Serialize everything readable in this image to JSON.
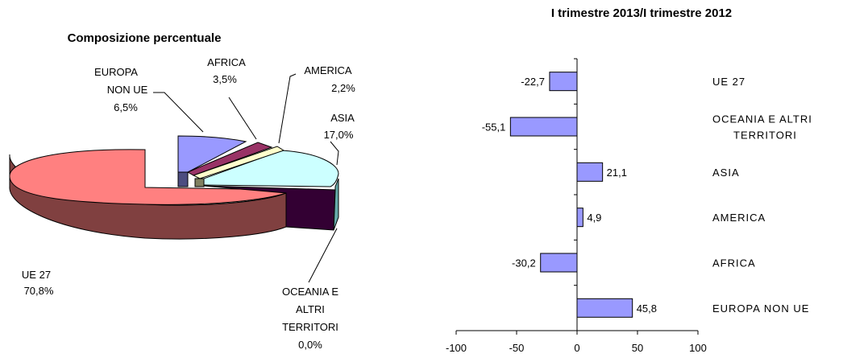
{
  "chart_data": [
    {
      "type": "pie",
      "title": "Composizione percentuale",
      "style": "3d-exploded",
      "slices": [
        {
          "name_lines": [
            "UE 27"
          ],
          "value_label": "70,8%",
          "value": 70.8,
          "color": "#ff8080"
        },
        {
          "name_lines": [
            "EUROPA",
            "NON UE"
          ],
          "value_label": "6,5%",
          "value": 6.5,
          "color": "#9999ff"
        },
        {
          "name_lines": [
            "AFRICA"
          ],
          "value_label": "3,5%",
          "value": 3.5,
          "color": "#993366"
        },
        {
          "name_lines": [
            "AMERICA"
          ],
          "value_label": "2,2%",
          "value": 2.2,
          "color": "#ffffcc"
        },
        {
          "name_lines": [
            "ASIA"
          ],
          "value_label": "17,0%",
          "value": 17.0,
          "color": "#ccffff"
        },
        {
          "name_lines": [
            "OCEANIA E",
            "ALTRI",
            "TERRITORI"
          ],
          "value_label": "0,0%",
          "value": 0.0,
          "color": "#660066"
        }
      ]
    },
    {
      "type": "bar",
      "orientation": "horizontal",
      "title": "I trimestre 2013/I trimestre 2012",
      "categories": [
        [
          "UE 27"
        ],
        [
          "OCEANIA E ALTRI",
          "TERRITORI"
        ],
        [
          "ASIA"
        ],
        [
          "AMERICA"
        ],
        [
          "AFRICA"
        ],
        [
          "EUROPA NON UE"
        ]
      ],
      "values": [
        -22.7,
        -55.1,
        21.1,
        4.9,
        -30.2,
        45.8
      ],
      "value_labels": [
        "-22,7",
        "-55,1",
        "21,1",
        "4,9",
        "-30,2",
        "45,8"
      ],
      "xlim": [
        -100,
        100
      ],
      "xticks": [
        -100,
        -50,
        0,
        50,
        100
      ],
      "xtick_labels": [
        "-100",
        "-50",
        "0",
        "50",
        "100"
      ],
      "bar_color": "#9999ff",
      "grid": false
    }
  ]
}
